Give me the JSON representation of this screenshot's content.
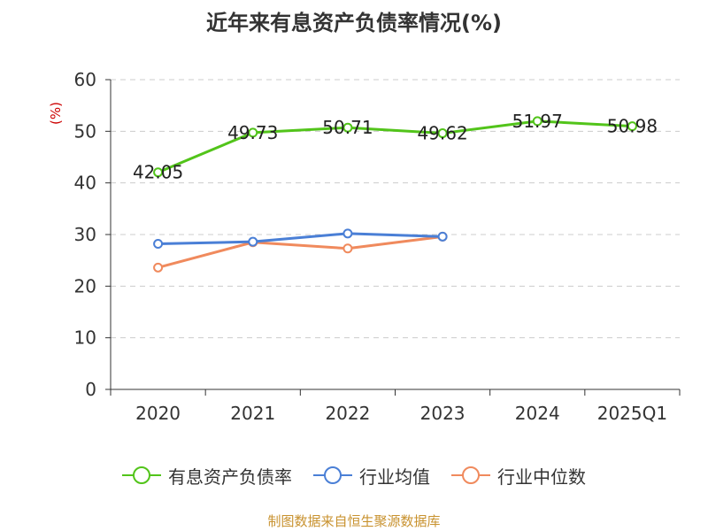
{
  "chart_data": {
    "type": "line",
    "title": "近年来有息资产负债率情况(%)",
    "ylabel": "(%)",
    "xlabel": "",
    "categories": [
      "2020",
      "2021",
      "2022",
      "2023",
      "2024",
      "2025Q1"
    ],
    "ylim": [
      0,
      60
    ],
    "yticks": [
      0,
      10,
      20,
      30,
      40,
      50,
      60
    ],
    "grid": true,
    "legend_position": "bottom",
    "series": [
      {
        "name": "有息资产负债率",
        "color": "#52c41a",
        "show_labels": true,
        "values": [
          42.05,
          49.73,
          50.71,
          49.62,
          51.97,
          50.98
        ],
        "labels": [
          "42.05",
          "49.73",
          "50.71",
          "49.62",
          "51.97",
          "50.98"
        ]
      },
      {
        "name": "行业均值",
        "color": "#4a7fd6",
        "show_labels": false,
        "values": [
          28.2,
          28.6,
          30.2,
          29.6,
          null,
          null
        ]
      },
      {
        "name": "行业中位数",
        "color": "#f08a5d",
        "show_labels": false,
        "values": [
          23.6,
          28.5,
          27.3,
          29.6,
          null,
          null
        ]
      }
    ],
    "source": "制图数据来自恒生聚源数据库"
  }
}
